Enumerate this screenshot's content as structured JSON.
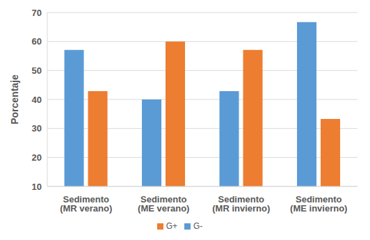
{
  "chart_data": {
    "type": "bar",
    "y_label": "Porcentaje",
    "categories": [
      "Sedimento (MR verano)",
      "Sedimento (ME verano)",
      "Sedimento (MR invierno)",
      "Sedimento (ME invierno)"
    ],
    "series": [
      {
        "name": "G-",
        "color": "#5b9bd5",
        "values": [
          57.1,
          40,
          42.9,
          66.7
        ]
      },
      {
        "name": "G+",
        "color": "#ed7d31",
        "values": [
          42.9,
          60,
          57.1,
          33.3
        ]
      }
    ],
    "ylim": [
      10,
      70
    ],
    "yticks": [
      10,
      20,
      30,
      40,
      50,
      60,
      70
    ],
    "grid": true,
    "legend": "bottom"
  }
}
